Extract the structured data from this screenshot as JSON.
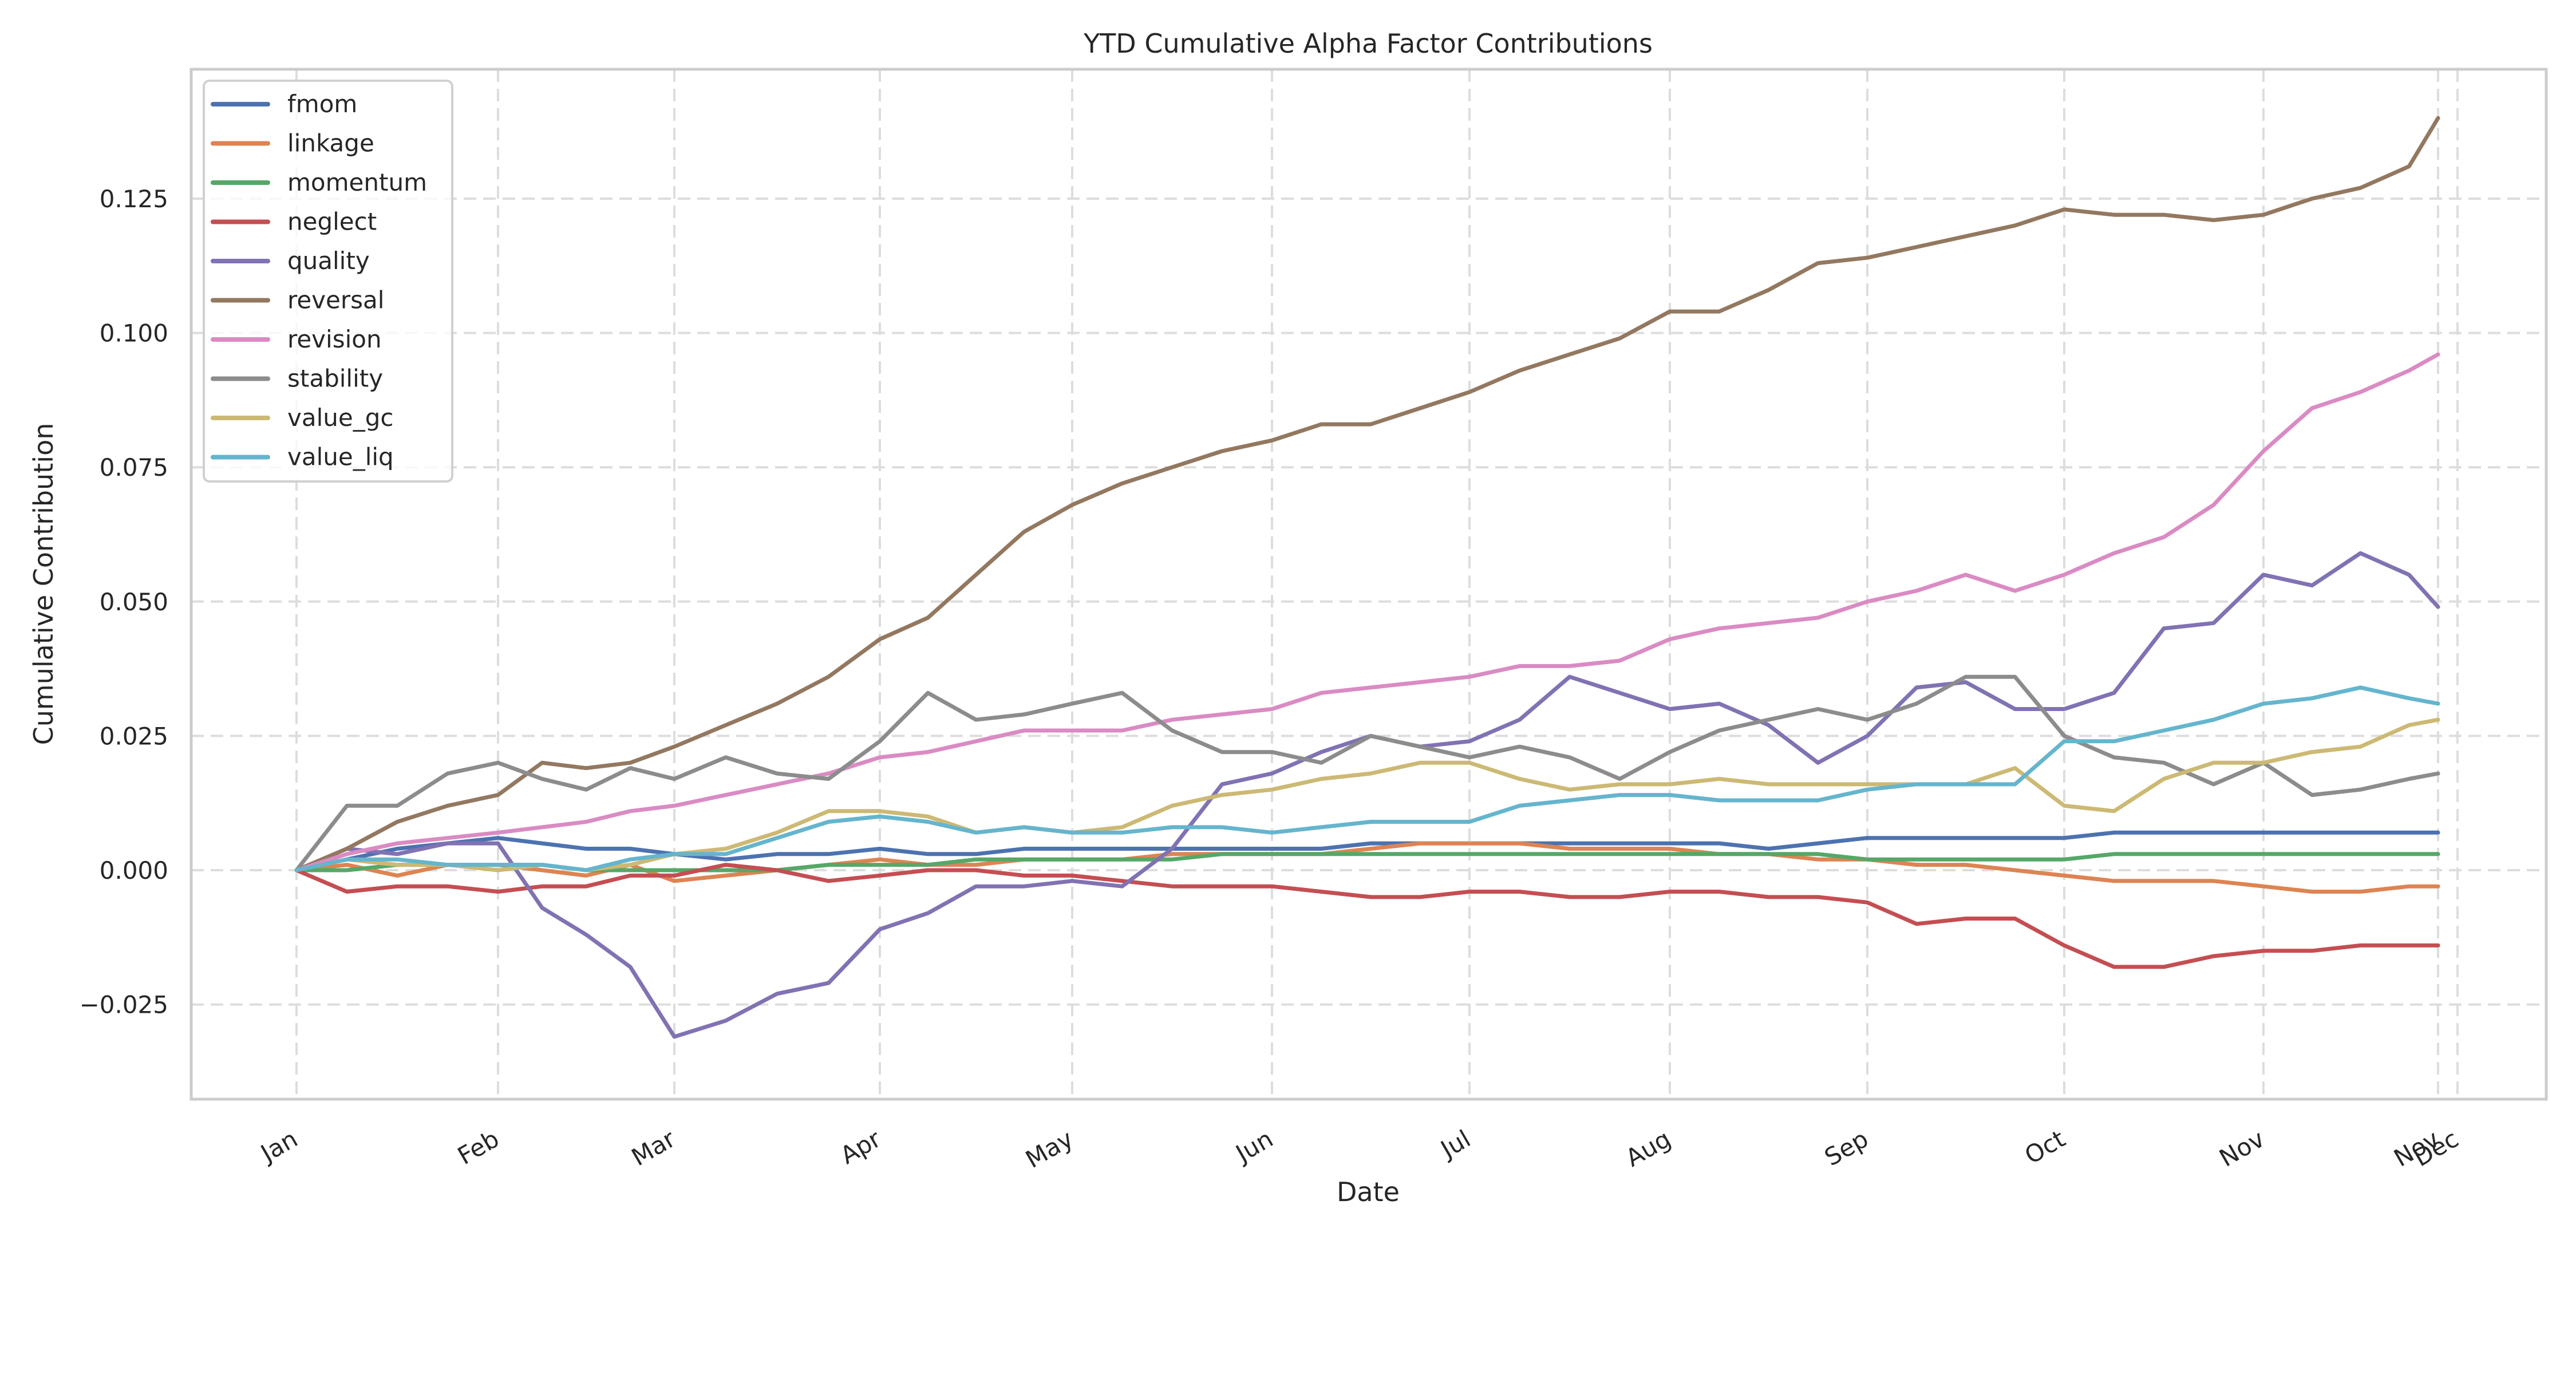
{
  "chart_data": {
    "type": "line",
    "title": "YTD Cumulative Alpha Factor Contributions",
    "xlabel": "Date",
    "ylabel": "Cumulative Contribution",
    "ylim": [
      -0.043,
      0.148
    ],
    "xlim_months": [
      -0.4,
      11.1
    ],
    "grid": true,
    "legend_position": "top-left",
    "y_ticks": [
      -0.025,
      0.0,
      0.025,
      0.05,
      0.075,
      0.1,
      0.125
    ],
    "y_tick_labels": [
      "−0.025",
      "0.000",
      "0.025",
      "0.050",
      "0.075",
      "0.100",
      "0.125"
    ],
    "x_ticks": [
      {
        "m": 0,
        "label": "Jan"
      },
      {
        "m": 1,
        "label": "Feb"
      },
      {
        "m": 2,
        "label": "Mar"
      },
      {
        "m": 3,
        "label": "Apr"
      },
      {
        "m": 4,
        "label": "May"
      },
      {
        "m": 5,
        "label": "Jun"
      },
      {
        "m": 6,
        "label": "Jul"
      },
      {
        "m": 7,
        "label": "Aug"
      },
      {
        "m": 8,
        "label": "Sep"
      },
      {
        "m": 9,
        "label": "Oct"
      },
      {
        "m": 10,
        "label": "Nov"
      },
      {
        "m": 10.9,
        "label": "Nov"
      },
      {
        "m": 11,
        "label": "Dec"
      }
    ],
    "x_month_units": [
      0,
      0.25,
      0.5,
      0.75,
      1,
      1.25,
      1.5,
      1.75,
      2,
      2.25,
      2.5,
      2.75,
      3,
      3.25,
      3.5,
      3.75,
      4,
      4.25,
      4.5,
      4.75,
      5,
      5.25,
      5.5,
      5.75,
      6,
      6.25,
      6.5,
      6.75,
      7,
      7.25,
      7.5,
      7.75,
      8,
      8.25,
      8.5,
      8.75,
      9,
      9.25,
      9.5,
      9.75,
      10,
      10.25,
      10.5,
      10.75,
      10.9
    ],
    "series": [
      {
        "name": "fmom",
        "color": "#4c72b0",
        "values": [
          0,
          0.002,
          0.004,
          0.005,
          0.006,
          0.005,
          0.004,
          0.004,
          0.003,
          0.002,
          0.003,
          0.003,
          0.004,
          0.003,
          0.003,
          0.004,
          0.004,
          0.004,
          0.004,
          0.004,
          0.004,
          0.004,
          0.005,
          0.005,
          0.005,
          0.005,
          0.005,
          0.005,
          0.005,
          0.005,
          0.004,
          0.005,
          0.006,
          0.006,
          0.006,
          0.006,
          0.006,
          0.007,
          0.007,
          0.007,
          0.007,
          0.007,
          0.007,
          0.007,
          0.007
        ]
      },
      {
        "name": "linkage",
        "color": "#dd8452",
        "values": [
          0,
          0.001,
          -0.001,
          0.001,
          0.001,
          0.0,
          -0.001,
          0.001,
          -0.002,
          -0.001,
          0.0,
          0.001,
          0.002,
          0.001,
          0.001,
          0.002,
          0.002,
          0.002,
          0.003,
          0.003,
          0.003,
          0.003,
          0.004,
          0.005,
          0.005,
          0.005,
          0.004,
          0.004,
          0.004,
          0.003,
          0.003,
          0.002,
          0.002,
          0.001,
          0.001,
          0.0,
          -0.001,
          -0.002,
          -0.002,
          -0.002,
          -0.003,
          -0.004,
          -0.004,
          -0.003,
          -0.003
        ]
      },
      {
        "name": "momentum",
        "color": "#55a868",
        "values": [
          0,
          0.0,
          0.001,
          0.001,
          0.001,
          0.001,
          0.0,
          0.0,
          0.0,
          0.0,
          0.0,
          0.001,
          0.001,
          0.001,
          0.002,
          0.002,
          0.002,
          0.002,
          0.002,
          0.003,
          0.003,
          0.003,
          0.003,
          0.003,
          0.003,
          0.003,
          0.003,
          0.003,
          0.003,
          0.003,
          0.003,
          0.003,
          0.002,
          0.002,
          0.002,
          0.002,
          0.002,
          0.003,
          0.003,
          0.003,
          0.003,
          0.003,
          0.003,
          0.003,
          0.003
        ]
      },
      {
        "name": "neglect",
        "color": "#c44e52",
        "values": [
          0,
          -0.004,
          -0.003,
          -0.003,
          -0.004,
          -0.003,
          -0.003,
          -0.001,
          -0.001,
          0.001,
          0.0,
          -0.002,
          -0.001,
          0.0,
          0.0,
          -0.001,
          -0.001,
          -0.002,
          -0.003,
          -0.003,
          -0.003,
          -0.004,
          -0.005,
          -0.005,
          -0.004,
          -0.004,
          -0.005,
          -0.005,
          -0.004,
          -0.004,
          -0.005,
          -0.005,
          -0.006,
          -0.01,
          -0.009,
          -0.009,
          -0.014,
          -0.018,
          -0.018,
          -0.016,
          -0.015,
          -0.015,
          -0.014,
          -0.014,
          -0.014
        ]
      },
      {
        "name": "quality",
        "color": "#8172b3",
        "values": [
          0,
          0.004,
          0.003,
          0.005,
          0.005,
          -0.007,
          -0.012,
          -0.018,
          -0.031,
          -0.028,
          -0.023,
          -0.021,
          -0.011,
          -0.008,
          -0.003,
          -0.003,
          -0.002,
          -0.003,
          0.004,
          0.016,
          0.018,
          0.022,
          0.025,
          0.023,
          0.024,
          0.028,
          0.036,
          0.033,
          0.03,
          0.031,
          0.027,
          0.02,
          0.025,
          0.034,
          0.035,
          0.03,
          0.03,
          0.033,
          0.045,
          0.046,
          0.055,
          0.053,
          0.059,
          0.055,
          0.049
        ]
      },
      {
        "name": "reversal",
        "color": "#937860",
        "values": [
          0,
          0.004,
          0.009,
          0.012,
          0.014,
          0.02,
          0.019,
          0.02,
          0.023,
          0.027,
          0.031,
          0.036,
          0.043,
          0.047,
          0.055,
          0.063,
          0.068,
          0.072,
          0.075,
          0.078,
          0.08,
          0.083,
          0.083,
          0.086,
          0.089,
          0.093,
          0.096,
          0.099,
          0.104,
          0.104,
          0.108,
          0.113,
          0.114,
          0.116,
          0.118,
          0.12,
          0.123,
          0.122,
          0.122,
          0.121,
          0.122,
          0.125,
          0.127,
          0.131,
          0.14
        ]
      },
      {
        "name": "revision",
        "color": "#da8bc3",
        "values": [
          0,
          0.003,
          0.005,
          0.006,
          0.007,
          0.008,
          0.009,
          0.011,
          0.012,
          0.014,
          0.016,
          0.018,
          0.021,
          0.022,
          0.024,
          0.026,
          0.026,
          0.026,
          0.028,
          0.029,
          0.03,
          0.033,
          0.034,
          0.035,
          0.036,
          0.038,
          0.038,
          0.039,
          0.043,
          0.045,
          0.046,
          0.047,
          0.05,
          0.052,
          0.055,
          0.052,
          0.055,
          0.059,
          0.062,
          0.068,
          0.078,
          0.086,
          0.089,
          0.093,
          0.096
        ]
      },
      {
        "name": "stability",
        "color": "#8c8c8c",
        "values": [
          0,
          0.012,
          0.012,
          0.018,
          0.02,
          0.017,
          0.015,
          0.019,
          0.017,
          0.021,
          0.018,
          0.017,
          0.024,
          0.033,
          0.028,
          0.029,
          0.031,
          0.033,
          0.026,
          0.022,
          0.022,
          0.02,
          0.025,
          0.023,
          0.021,
          0.023,
          0.021,
          0.017,
          0.022,
          0.026,
          0.028,
          0.03,
          0.028,
          0.031,
          0.036,
          0.036,
          0.025,
          0.021,
          0.02,
          0.016,
          0.02,
          0.014,
          0.015,
          0.017,
          0.018
        ]
      },
      {
        "name": "value_gc",
        "color": "#ccb974",
        "values": [
          0,
          0.002,
          0.001,
          0.001,
          0.0,
          0.001,
          0.0,
          0.001,
          0.003,
          0.004,
          0.007,
          0.011,
          0.011,
          0.01,
          0.007,
          0.008,
          0.007,
          0.008,
          0.012,
          0.014,
          0.015,
          0.017,
          0.018,
          0.02,
          0.02,
          0.017,
          0.015,
          0.016,
          0.016,
          0.017,
          0.016,
          0.016,
          0.016,
          0.016,
          0.016,
          0.019,
          0.012,
          0.011,
          0.017,
          0.02,
          0.02,
          0.022,
          0.023,
          0.027,
          0.028
        ]
      },
      {
        "name": "value_liq",
        "color": "#64b5cd",
        "values": [
          0,
          0.002,
          0.002,
          0.001,
          0.001,
          0.001,
          0.0,
          0.002,
          0.003,
          0.003,
          0.006,
          0.009,
          0.01,
          0.009,
          0.007,
          0.008,
          0.007,
          0.007,
          0.008,
          0.008,
          0.007,
          0.008,
          0.009,
          0.009,
          0.009,
          0.012,
          0.013,
          0.014,
          0.014,
          0.013,
          0.013,
          0.013,
          0.015,
          0.016,
          0.016,
          0.016,
          0.024,
          0.024,
          0.026,
          0.028,
          0.031,
          0.032,
          0.034,
          0.032,
          0.031
        ]
      }
    ]
  }
}
